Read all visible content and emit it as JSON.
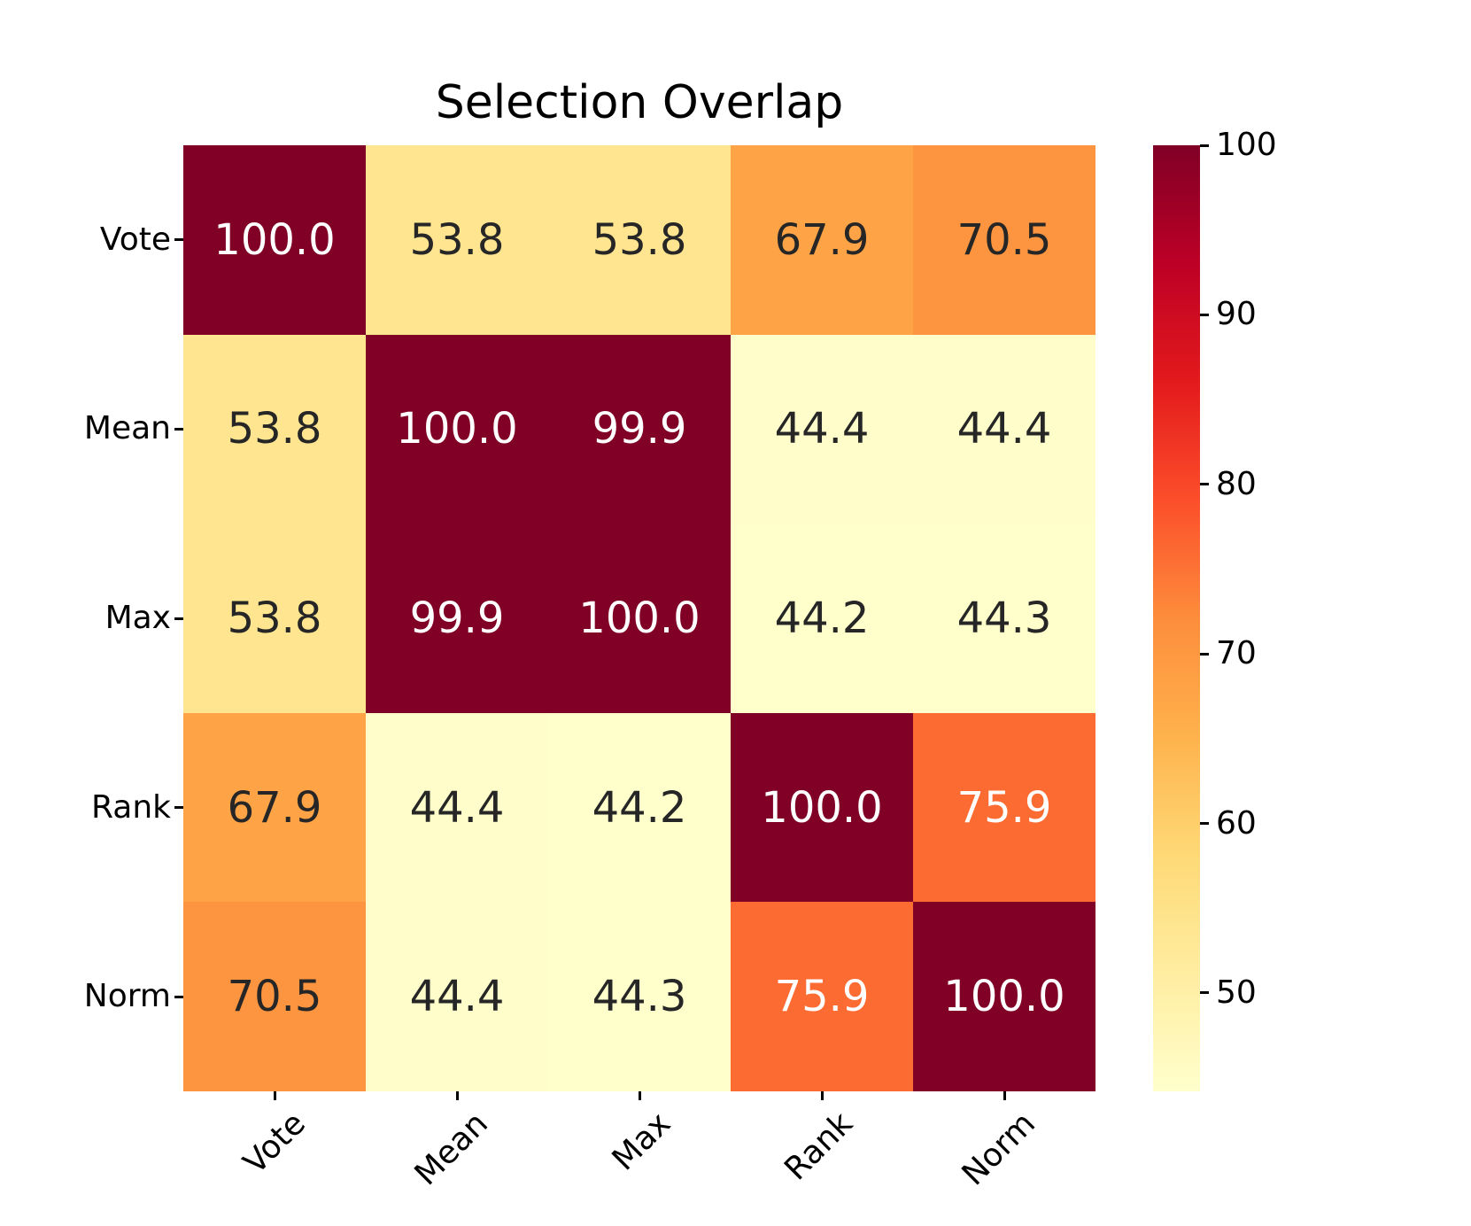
{
  "chart_data": {
    "type": "heatmap",
    "title": "Selection Overlap",
    "categories": [
      "Vote",
      "Mean",
      "Max",
      "Rank",
      "Norm"
    ],
    "matrix": [
      [
        100.0,
        53.8,
        53.8,
        67.9,
        70.5
      ],
      [
        53.8,
        100.0,
        99.9,
        44.4,
        44.4
      ],
      [
        53.8,
        99.9,
        100.0,
        44.2,
        44.3
      ],
      [
        67.9,
        44.4,
        44.2,
        100.0,
        75.9
      ],
      [
        70.5,
        44.4,
        44.3,
        75.9,
        100.0
      ]
    ],
    "value_decimals": 1,
    "vmin": 44.2,
    "vmax": 100,
    "colormap_name": "YlOrRd",
    "colormap_stops": [
      "#ffffcc",
      "#ffeda0",
      "#fed976",
      "#feb24c",
      "#fd8d3c",
      "#fc4e2a",
      "#e31a1c",
      "#bd0026",
      "#800026"
    ],
    "annotation_color_dark": "#262626",
    "annotation_color_light": "#ffffff",
    "axis_color": "#000000",
    "x_tick_rotation_deg": 45,
    "grid": false,
    "colorbar": {
      "position": "right",
      "ticks": [
        100,
        90,
        80,
        70,
        60,
        50
      ],
      "tick_labels": [
        "100",
        "90",
        "80",
        "70",
        "60",
        "50"
      ]
    }
  }
}
